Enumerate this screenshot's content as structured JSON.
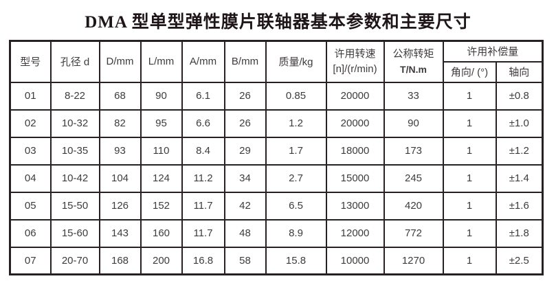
{
  "title": "DMA 型单型弹性膜片联轴器基本参数和主要尺寸",
  "table": {
    "headers": {
      "model": "型号",
      "bore": "孔径 d",
      "d": "D/mm",
      "l": "L/mm",
      "a": "A/mm",
      "b": "B/mm",
      "mass": "质量/kg",
      "speed_line1": "许用转速",
      "speed_line2": "[n]/(r/min)",
      "torque_line1": "公称转矩",
      "torque_line2": "T/N.m",
      "compensation": "许用补偿量",
      "angular": "角向/ (°)",
      "axial": "轴向"
    },
    "rows": [
      [
        "01",
        "8-22",
        "68",
        "90",
        "6.1",
        "26",
        "0.85",
        "20000",
        "33",
        "1",
        "±0.8"
      ],
      [
        "02",
        "10-32",
        "82",
        "95",
        "6.6",
        "26",
        "1.2",
        "20000",
        "90",
        "1",
        "±1.0"
      ],
      [
        "03",
        "10-35",
        "93",
        "110",
        "8.4",
        "29",
        "1.7",
        "18000",
        "173",
        "1",
        "±1.2"
      ],
      [
        "04",
        "10-42",
        "104",
        "124",
        "11.2",
        "34",
        "2.7",
        "15000",
        "245",
        "1",
        "±1.4"
      ],
      [
        "05",
        "15-50",
        "126",
        "152",
        "11.7",
        "42",
        "6.5",
        "13000",
        "420",
        "1",
        "±1.6"
      ],
      [
        "06",
        "15-60",
        "143",
        "160",
        "11.7",
        "48",
        "8.9",
        "12000",
        "772",
        "1",
        "±1.8"
      ],
      [
        "07",
        "20-70",
        "168",
        "200",
        "16.8",
        "58",
        "15.8",
        "10000",
        "1270",
        "1",
        "±2.5"
      ]
    ]
  },
  "colors": {
    "border": "#281f23",
    "text": "#3f3b3d",
    "title": "#1e1519",
    "background": "#ffffff"
  }
}
